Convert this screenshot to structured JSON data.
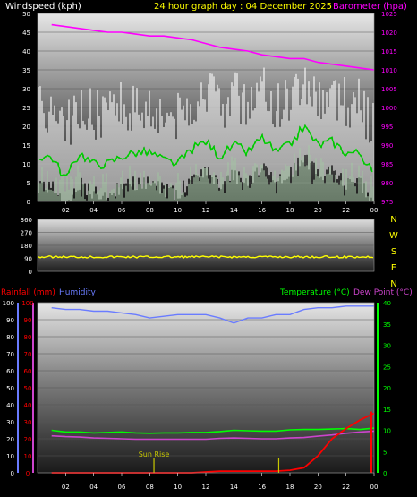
{
  "colors": {
    "wind": "#ffffff",
    "wind_avg": "#00cc00",
    "gust": "#c8f0c8",
    "barometer": "#ff00ff",
    "wind_dir": "#ffff00",
    "humidity": "#6a7cff",
    "temperature": "#00ff00",
    "dew_point": "#cc44cc",
    "rain_rate": "#ff0000",
    "rain_total": "#ff0000",
    "sunrise": "#c8c800",
    "header": "#ffff00",
    "axis_text": "#ffffff"
  },
  "header": {
    "wind_label": "Windspeed (kph)",
    "title": "24 hour graph day : 04 December 2025",
    "baro_label": "Barometer (hpa)"
  },
  "time_ticks": [
    "02",
    "04",
    "06",
    "08",
    "10",
    "12",
    "14",
    "16",
    "18",
    "20",
    "22",
    "00"
  ],
  "chart_data": [
    {
      "type": "line",
      "panel": "wind-barometer",
      "x": [
        "01",
        "02",
        "03",
        "04",
        "05",
        "06",
        "07",
        "08",
        "09",
        "10",
        "11",
        "12",
        "13",
        "14",
        "15",
        "16",
        "17",
        "18",
        "19",
        "20",
        "21",
        "22",
        "23",
        "00"
      ],
      "series": [
        {
          "name": "Windspeed (kph)",
          "axis": "left",
          "values": [
            12,
            6,
            13,
            10,
            10,
            12,
            13,
            13,
            11,
            10,
            14,
            16,
            12,
            15,
            13,
            17,
            13,
            15,
            20,
            15,
            16,
            13,
            13,
            7
          ]
        },
        {
          "name": "Barometer (hpa)",
          "axis": "right",
          "values": [
            1022,
            1021.5,
            1021,
            1020.5,
            1020,
            1020,
            1019.5,
            1019,
            1019,
            1018.5,
            1018,
            1017,
            1016,
            1015.5,
            1015,
            1014,
            1013.5,
            1013,
            1013,
            1012,
            1011.5,
            1011,
            1010.5,
            1010
          ]
        }
      ],
      "ylim_left": [
        0,
        50
      ],
      "ylim_right": [
        975,
        1025
      ],
      "yticks_left": [
        "0",
        "5",
        "10",
        "15",
        "20",
        "25",
        "30",
        "35",
        "40",
        "45",
        "50"
      ],
      "yticks_right": [
        "975",
        "980",
        "985",
        "990",
        "995",
        "1000",
        "1005",
        "1010",
        "1015",
        "1020",
        "1025"
      ]
    },
    {
      "type": "scatter",
      "panel": "wind-direction",
      "yticks": [
        "0",
        "90",
        "180",
        "270",
        "360"
      ],
      "ylim": [
        0,
        360
      ],
      "value": 100,
      "compass": [
        "N",
        "W",
        "S",
        "E",
        "N"
      ]
    },
    {
      "type": "line",
      "panel": "rain-humidity-temp",
      "labels": {
        "rain": "Rainfall (mm)",
        "humidity": "Humidity",
        "temperature": "Temperature (°C)",
        "dew": "Dew Point (°C)"
      },
      "x": [
        "01",
        "02",
        "03",
        "04",
        "05",
        "06",
        "07",
        "08",
        "09",
        "10",
        "11",
        "12",
        "13",
        "14",
        "15",
        "16",
        "17",
        "18",
        "19",
        "20",
        "21",
        "22",
        "23",
        "00"
      ],
      "series": [
        {
          "name": "Humidity",
          "axis": "left",
          "values": [
            97,
            96,
            96,
            95,
            95,
            94,
            93,
            91,
            92,
            93,
            93,
            93,
            91,
            88,
            91,
            91,
            93,
            93,
            96,
            97,
            97,
            98,
            98,
            98
          ]
        },
        {
          "name": "Rainfall (mm)",
          "axis": "left",
          "values": [
            0,
            0,
            0,
            0,
            0,
            0,
            0,
            0,
            0,
            0,
            0,
            0.5,
            1,
            1,
            1,
            1,
            1,
            1.5,
            3,
            10,
            20,
            26,
            31,
            35
          ]
        },
        {
          "name": "Temperature (°C)",
          "axis": "right",
          "values": [
            10,
            9.6,
            9.6,
            9.4,
            9.5,
            9.6,
            9.4,
            9.3,
            9.4,
            9.4,
            9.5,
            9.5,
            9.7,
            10,
            9.9,
            9.8,
            9.8,
            10.1,
            10.2,
            10.2,
            10.3,
            10.4,
            10.2,
            10.5
          ]
        },
        {
          "name": "Dew Point (°C)",
          "axis": "right",
          "values": [
            8.7,
            8.5,
            8.4,
            8.2,
            8.1,
            8.0,
            7.9,
            7.9,
            7.9,
            7.9,
            7.9,
            7.9,
            8.1,
            8.2,
            8.1,
            8.0,
            8.0,
            8.2,
            8.3,
            8.6,
            8.9,
            9.3,
            9.6,
            9.8
          ]
        }
      ],
      "ylim_left": [
        0,
        100
      ],
      "ylim_right": [
        0,
        40
      ],
      "yticks_left": [
        "0",
        "10",
        "20",
        "30",
        "40",
        "50",
        "60",
        "70",
        "80",
        "90",
        "100"
      ],
      "yticks_right": [
        "0",
        "5",
        "10",
        "15",
        "20",
        "25",
        "30",
        "35",
        "40"
      ],
      "annotations": [
        {
          "text": "Sun Rise",
          "x": "08"
        }
      ]
    }
  ]
}
